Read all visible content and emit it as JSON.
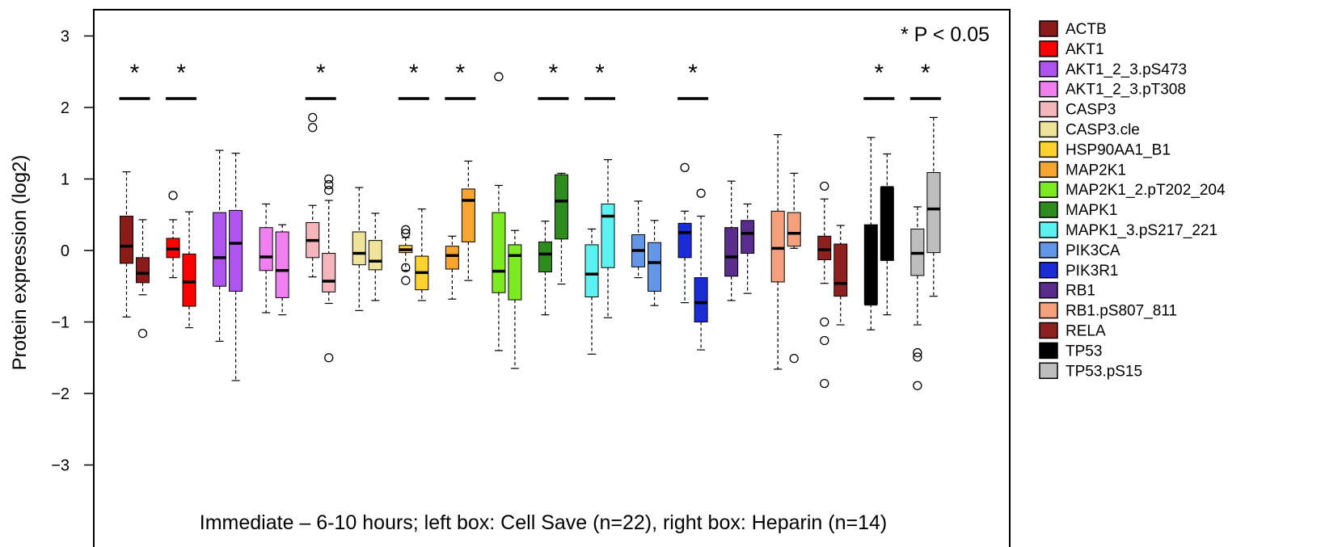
{
  "chart_data": {
    "type": "box",
    "ylabel": "Protein expression (log2)",
    "ylim": [
      -3.5,
      3.35
    ],
    "yticks": [
      "−3",
      "−2",
      "−1",
      "0",
      "1",
      "2",
      "3"
    ],
    "ytick_values": [
      -3,
      -2,
      -1,
      0,
      1,
      2,
      3
    ],
    "significance_note": "* P < 0.05",
    "caption": "Immediate – 6-10 hours; left box: Cell Save (n=22), right box: Heparin (n=14)",
    "legend_position": "right",
    "star_symbol": "*",
    "proteins": [
      {
        "name": "ACTB",
        "color": "#8B1A1A",
        "sig": true,
        "left": {
          "wl": -0.93,
          "q1": -0.18,
          "med": 0.06,
          "q3": 0.48,
          "wh": 1.1,
          "out": []
        },
        "right": {
          "wl": -0.62,
          "q1": -0.45,
          "med": -0.32,
          "q3": -0.1,
          "wh": 0.43,
          "out": [
            -1.16
          ]
        }
      },
      {
        "name": "AKT1",
        "color": "#FF0000",
        "sig": true,
        "left": {
          "wl": -0.38,
          "q1": -0.1,
          "med": 0.02,
          "q3": 0.17,
          "wh": 0.43,
          "out": [
            0.77
          ]
        },
        "right": {
          "wl": -1.08,
          "q1": -0.78,
          "med": -0.44,
          "q3": -0.05,
          "wh": 0.54,
          "out": []
        }
      },
      {
        "name": "AKT1_2_3.pS473",
        "color": "#B054F0",
        "sig": false,
        "left": {
          "wl": -1.27,
          "q1": -0.5,
          "med": -0.1,
          "q3": 0.53,
          "wh": 1.4,
          "out": []
        },
        "right": {
          "wl": -1.82,
          "q1": -0.57,
          "med": 0.1,
          "q3": 0.56,
          "wh": 1.36,
          "out": []
        }
      },
      {
        "name": "AKT1_2_3.pT308",
        "color": "#F080F0",
        "sig": false,
        "left": {
          "wl": -0.87,
          "q1": -0.28,
          "med": -0.09,
          "q3": 0.32,
          "wh": 0.65,
          "out": []
        },
        "right": {
          "wl": -0.9,
          "q1": -0.66,
          "med": -0.28,
          "q3": 0.26,
          "wh": 0.36,
          "out": []
        }
      },
      {
        "name": "CASP3",
        "color": "#F4B6BA",
        "sig": true,
        "left": {
          "wl": -0.37,
          "q1": -0.1,
          "med": 0.14,
          "q3": 0.39,
          "wh": 0.63,
          "out": [
            1.86,
            1.72
          ]
        },
        "right": {
          "wl": -0.74,
          "q1": -0.58,
          "med": -0.43,
          "q3": -0.04,
          "wh": 0.7,
          "out": [
            1.0,
            0.92,
            0.84,
            -1.5
          ]
        }
      },
      {
        "name": "CASP3.cle",
        "color": "#F0E39A",
        "sig": false,
        "left": {
          "wl": -0.84,
          "q1": -0.2,
          "med": -0.04,
          "q3": 0.26,
          "wh": 0.88,
          "out": []
        },
        "right": {
          "wl": -0.7,
          "q1": -0.27,
          "med": -0.15,
          "q3": 0.14,
          "wh": 0.52,
          "out": []
        }
      },
      {
        "name": "HSP90AA1_B1",
        "color": "#FFD22E",
        "sig": true,
        "left": {
          "wl": -0.28,
          "q1": -0.03,
          "med": 0.01,
          "q3": 0.07,
          "wh": 0.18,
          "out": [
            0.29,
            0.24,
            -0.24,
            -0.42
          ]
        },
        "right": {
          "wl": -0.7,
          "q1": -0.55,
          "med": -0.31,
          "q3": -0.08,
          "wh": 0.58,
          "out": []
        }
      },
      {
        "name": "MAP2K1",
        "color": "#F6A530",
        "sig": true,
        "left": {
          "wl": -0.68,
          "q1": -0.26,
          "med": -0.07,
          "q3": 0.06,
          "wh": 0.2,
          "out": []
        },
        "right": {
          "wl": -0.42,
          "q1": 0.12,
          "med": 0.7,
          "q3": 0.86,
          "wh": 1.25,
          "out": []
        }
      },
      {
        "name": "MAP2K1_2.pT202_204",
        "color": "#7CEB22",
        "sig": false,
        "left": {
          "wl": -1.4,
          "q1": -0.59,
          "med": -0.29,
          "q3": 0.53,
          "wh": 0.91,
          "out": [
            2.43
          ]
        },
        "right": {
          "wl": -1.65,
          "q1": -0.69,
          "med": -0.07,
          "q3": 0.08,
          "wh": 0.28,
          "out": []
        }
      },
      {
        "name": "MAPK1",
        "color": "#2E8B1E",
        "sig": true,
        "left": {
          "wl": -0.9,
          "q1": -0.3,
          "med": -0.05,
          "q3": 0.12,
          "wh": 0.41,
          "out": []
        },
        "right": {
          "wl": -0.47,
          "q1": 0.16,
          "med": 0.69,
          "q3": 1.06,
          "wh": 1.08,
          "out": []
        }
      },
      {
        "name": "MAPK1_3.pS217_221",
        "color": "#5CF2F2",
        "sig": true,
        "left": {
          "wl": -1.45,
          "q1": -0.65,
          "med": -0.33,
          "q3": 0.08,
          "wh": 0.3,
          "out": []
        },
        "right": {
          "wl": -0.94,
          "q1": -0.24,
          "med": 0.48,
          "q3": 0.65,
          "wh": 1.27,
          "out": []
        }
      },
      {
        "name": "PIK3CA",
        "color": "#6496E8",
        "sig": false,
        "left": {
          "wl": -0.38,
          "q1": -0.23,
          "med": 0.0,
          "q3": 0.22,
          "wh": 0.69,
          "out": []
        },
        "right": {
          "wl": -0.77,
          "q1": -0.57,
          "med": -0.17,
          "q3": 0.11,
          "wh": 0.42,
          "out": []
        }
      },
      {
        "name": "PIK3R1",
        "color": "#1A2CD6",
        "sig": true,
        "left": {
          "wl": -0.73,
          "q1": -0.1,
          "med": 0.25,
          "q3": 0.38,
          "wh": 0.55,
          "out": [
            1.16
          ]
        },
        "right": {
          "wl": -1.39,
          "q1": -1.0,
          "med": -0.73,
          "q3": -0.38,
          "wh": 0.48,
          "out": [
            0.8
          ]
        }
      },
      {
        "name": "RB1",
        "color": "#5A2D8C",
        "sig": false,
        "left": {
          "wl": -0.7,
          "q1": -0.36,
          "med": -0.09,
          "q3": 0.32,
          "wh": 0.97,
          "out": []
        },
        "right": {
          "wl": -0.6,
          "q1": -0.04,
          "med": 0.24,
          "q3": 0.42,
          "wh": 0.65,
          "out": []
        }
      },
      {
        "name": "RB1.pS807_811",
        "color": "#F4A07C",
        "sig": false,
        "left": {
          "wl": -1.66,
          "q1": -0.44,
          "med": 0.03,
          "q3": 0.55,
          "wh": 1.62,
          "out": []
        },
        "right": {
          "wl": 0.03,
          "q1": 0.06,
          "med": 0.24,
          "q3": 0.53,
          "wh": 1.08,
          "out": [
            -1.51
          ]
        }
      },
      {
        "name": "RELA",
        "color": "#8E2020",
        "sig": false,
        "left": {
          "wl": -0.46,
          "q1": -0.13,
          "med": 0.01,
          "q3": 0.2,
          "wh": 0.72,
          "out": [
            0.9,
            -1.0,
            -1.26,
            -1.86
          ]
        },
        "right": {
          "wl": -1.04,
          "q1": -0.64,
          "med": -0.46,
          "q3": 0.09,
          "wh": 0.35,
          "out": []
        }
      },
      {
        "name": "TP53",
        "color": "#000000",
        "sig": true,
        "left": {
          "wl": -1.11,
          "q1": -0.75,
          "med": -0.75,
          "q3": 0.36,
          "wh": 1.58,
          "out": []
        },
        "right": {
          "wl": -0.9,
          "q1": -0.14,
          "med": 0.88,
          "q3": 0.88,
          "wh": 1.35,
          "out": []
        }
      },
      {
        "name": "TP53.pS15",
        "color": "#BDBDBD",
        "sig": true,
        "left": {
          "wl": -1.04,
          "q1": -0.35,
          "med": -0.04,
          "q3": 0.3,
          "wh": 0.61,
          "out": [
            -1.43,
            -1.49,
            -1.89
          ]
        },
        "right": {
          "wl": -0.64,
          "q1": -0.03,
          "med": 0.58,
          "q3": 1.09,
          "wh": 1.86,
          "out": []
        }
      }
    ]
  }
}
